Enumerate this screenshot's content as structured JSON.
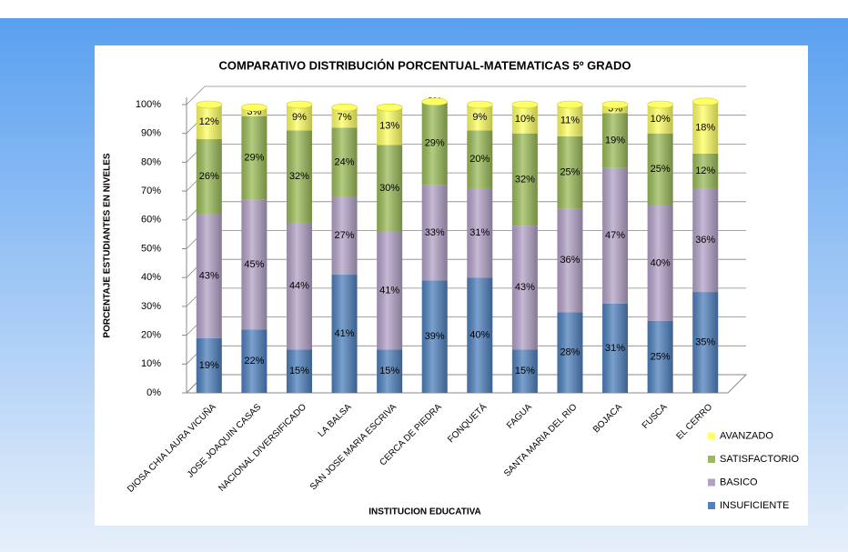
{
  "chart_data": {
    "type": "stacked_bar",
    "title": "COMPARATIVO DISTRIBUCIÓN PORCENTUAL-MATEMATICAS 5º GRADO",
    "x_label": "INSTITUCION EDUCATIVA",
    "y_label": "PORCENTAJE ESTUDIANTES EN NIVELES",
    "categories": [
      "DIOSA CHIA LAURA VICUÑA",
      "JOSE JOAQUIN CASAS",
      "NACIONAL DIVERSIFICADO",
      "LA BALSA",
      "SAN JOSE MARIA ESCRIVA",
      "CERCA DE PIEDRA",
      "FONQUETÁ",
      "FAGUA",
      "SANTA MARIA DEL RIO",
      "BOJACA",
      "FUSCA",
      "EL CERRO"
    ],
    "series": [
      {
        "name": "INSUFICIENTE",
        "color": "#4f81bd",
        "values": [
          19,
          22,
          15,
          41,
          15,
          39,
          40,
          15,
          28,
          31,
          25,
          35
        ],
        "value_labels": [
          "19%",
          "22%",
          "15%",
          "41%",
          "15%",
          "39%",
          "40%",
          "15%",
          "28%",
          "31%",
          "25%",
          "35%"
        ]
      },
      {
        "name": "BASICO",
        "color": "#b3a2c7",
        "values": [
          43,
          45,
          44,
          27,
          41,
          33,
          31,
          43,
          36,
          47,
          40,
          36
        ],
        "value_labels": [
          "43%",
          "45%",
          "44%",
          "27%",
          "41%",
          "33%",
          "31%",
          "43%",
          "36%",
          "47%",
          "40%",
          "36%"
        ]
      },
      {
        "name": "SATISFACTORIO",
        "color": "#9bbb59",
        "values": [
          26,
          29,
          32,
          24,
          30,
          29,
          20,
          32,
          25,
          19,
          25,
          12
        ],
        "value_labels": [
          "26%",
          "29%",
          "32%",
          "24%",
          "30%",
          "29%",
          "20%",
          "32%",
          "25%",
          "19%",
          "25%",
          "12%"
        ]
      },
      {
        "name": "AVANZADO",
        "color": "#ffff66",
        "values": [
          12,
          3,
          9,
          7,
          13,
          0,
          9,
          10,
          11,
          3,
          10,
          18
        ],
        "value_labels": [
          "12%",
          "3%",
          "9%",
          "7%",
          "13%",
          "0%",
          "9%",
          "10%",
          "11%",
          "3%",
          "10%",
          "18%"
        ]
      }
    ],
    "ylim": [
      0,
      100
    ],
    "yticks": [
      {
        "value": 0,
        "label": "0%"
      },
      {
        "value": 10,
        "label": "10%"
      },
      {
        "value": 20,
        "label": "20%"
      },
      {
        "value": 30,
        "label": "30%"
      },
      {
        "value": 40,
        "label": "40%"
      },
      {
        "value": 50,
        "label": "50%"
      },
      {
        "value": 60,
        "label": "60%"
      },
      {
        "value": 70,
        "label": "70%"
      },
      {
        "value": 80,
        "label": "80%"
      },
      {
        "value": 90,
        "label": "90%"
      },
      {
        "value": 100,
        "label": "100%"
      }
    ],
    "grid": true,
    "legend": "right"
  }
}
